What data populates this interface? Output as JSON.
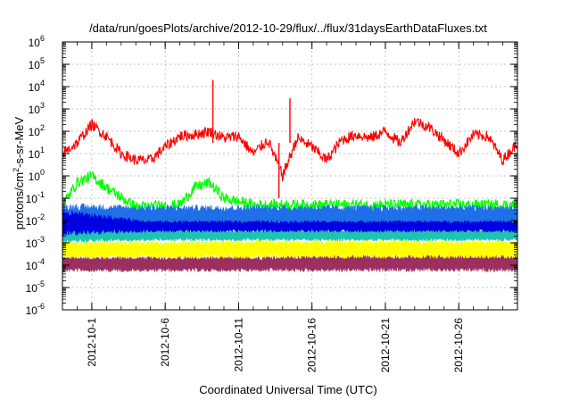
{
  "chart_data": {
    "type": "line",
    "title": "/data/run/goesPlots/archive/2012-10-29/flux/../flux/31daysEarthDataFluxes.txt",
    "xlabel": "Coordinated Universal Time (UTC)",
    "ylabel_main": "protons/cm",
    "ylabel_sup": "2",
    "ylabel_rest": "-s-sr-MeV",
    "yscale": "log",
    "ylim": [
      1e-06,
      1000000.0
    ],
    "y_ticks": [
      {
        "value": 1e-06,
        "base": "10",
        "exp": "-6"
      },
      {
        "value": 1e-05,
        "base": "10",
        "exp": "-5"
      },
      {
        "value": 0.0001,
        "base": "10",
        "exp": "-4"
      },
      {
        "value": 0.001,
        "base": "10",
        "exp": "-3"
      },
      {
        "value": 0.01,
        "base": "10",
        "exp": "-2"
      },
      {
        "value": 0.1,
        "base": "10",
        "exp": "-1"
      },
      {
        "value": 1,
        "base": "10",
        "exp": "0"
      },
      {
        "value": 10,
        "base": "10",
        "exp": "1"
      },
      {
        "value": 100,
        "base": "10",
        "exp": "2"
      },
      {
        "value": 1000,
        "base": "10",
        "exp": "3"
      },
      {
        "value": 10000,
        "base": "10",
        "exp": "4"
      },
      {
        "value": 100000,
        "base": "10",
        "exp": "5"
      },
      {
        "value": 1000000,
        "base": "10",
        "exp": "6"
      }
    ],
    "xlim": [
      "2012-09-29",
      "2012-10-30"
    ],
    "x_ticks": [
      "2012-10-1",
      "2012-10-6",
      "2012-10-11",
      "2012-10-16",
      "2012-10-21",
      "2012-10-26"
    ],
    "x_tick_dates": [
      "2012-10-01",
      "2012-10-06",
      "2012-10-11",
      "2012-10-16",
      "2012-10-21",
      "2012-10-26"
    ],
    "grid": true,
    "legend": "none",
    "series": [
      {
        "color": "#9b3060",
        "x": [
          "2012-09-29",
          "2012-10-05",
          "2012-10-11",
          "2012-10-17",
          "2012-10-23",
          "2012-10-30"
        ],
        "y_low": [
          5e-05,
          5e-05,
          5e-05,
          5e-05,
          5e-05,
          5e-05
        ],
        "y_high": [
          0.00025,
          0.00025,
          0.00025,
          0.0003,
          0.0003,
          0.0003
        ]
      },
      {
        "color": "#ffff00",
        "x": [
          "2012-09-29",
          "2012-10-05",
          "2012-10-11",
          "2012-10-17",
          "2012-10-23",
          "2012-10-30"
        ],
        "y_low": [
          0.0002,
          0.0002,
          0.0002,
          0.0002,
          0.0002,
          0.0002
        ],
        "y_high": [
          0.0012,
          0.0012,
          0.0013,
          0.0013,
          0.0014,
          0.0013
        ]
      },
      {
        "color": "#1fc4b0",
        "x": [
          "2012-09-29",
          "2012-10-05",
          "2012-10-11",
          "2012-10-17",
          "2012-10-23",
          "2012-10-30"
        ],
        "y_low": [
          0.001,
          0.0012,
          0.0012,
          0.0012,
          0.0012,
          0.0012
        ],
        "y_high": [
          0.006,
          0.004,
          0.004,
          0.004,
          0.004,
          0.004
        ]
      },
      {
        "color": "#00ff00",
        "x": [
          "2012-09-29",
          "2012-09-30",
          "2012-10-01",
          "2012-10-02",
          "2012-10-04",
          "2012-10-07",
          "2012-10-08",
          "2012-10-09",
          "2012-10-10",
          "2012-10-12",
          "2012-10-16",
          "2012-10-20",
          "2012-10-24",
          "2012-10-28",
          "2012-10-30"
        ],
        "y": [
          0.05,
          0.5,
          1.0,
          0.3,
          0.04,
          0.05,
          0.3,
          0.5,
          0.1,
          0.05,
          0.05,
          0.05,
          0.05,
          0.05,
          0.05
        ]
      },
      {
        "color": "#1e6fe8",
        "x": [
          "2012-09-29",
          "2012-10-05",
          "2012-10-11",
          "2012-10-17",
          "2012-10-23",
          "2012-10-30"
        ],
        "y_low": [
          0.003,
          0.004,
          0.004,
          0.004,
          0.004,
          0.004
        ],
        "y_high": [
          0.06,
          0.05,
          0.05,
          0.05,
          0.05,
          0.05
        ]
      },
      {
        "color": "#0000e0",
        "x": [
          "2012-09-29",
          "2012-10-05",
          "2012-10-11",
          "2012-10-17",
          "2012-10-23",
          "2012-10-30"
        ],
        "y_low": [
          0.002,
          0.003,
          0.003,
          0.003,
          0.003,
          0.003
        ],
        "y_high": [
          0.03,
          0.01,
          0.01,
          0.01,
          0.01,
          0.01
        ]
      },
      {
        "color": "#ff0000",
        "x": [
          "2012-09-29",
          "2012-09-30",
          "2012-10-01",
          "2012-10-02",
          "2012-10-03",
          "2012-10-04",
          "2012-10-05",
          "2012-10-06",
          "2012-10-07",
          "2012-10-08",
          "2012-10-09",
          "2012-10-10",
          "2012-10-11",
          "2012-10-12",
          "2012-10-13",
          "2012-10-14",
          "2012-10-15",
          "2012-10-16",
          "2012-10-17",
          "2012-10-18",
          "2012-10-19",
          "2012-10-20",
          "2012-10-21",
          "2012-10-22",
          "2012-10-23",
          "2012-10-24",
          "2012-10-25",
          "2012-10-26",
          "2012-10-27",
          "2012-10-28",
          "2012-10-29",
          "2012-10-30"
        ],
        "y": [
          10,
          30,
          200,
          60,
          10,
          5,
          5,
          20,
          60,
          70,
          100,
          50,
          60,
          10,
          40,
          1,
          50,
          20,
          5,
          40,
          70,
          50,
          100,
          30,
          300,
          150,
          40,
          10,
          70,
          60,
          5,
          30
        ]
      }
    ],
    "spikes": [
      {
        "x": "2012-10-09T06:00",
        "y": 20000,
        "color": "#ff0000"
      },
      {
        "x": "2012-10-14T12:00",
        "y": 3000,
        "color": "#ff0000"
      },
      {
        "x": "2012-10-13T18:00",
        "y": 0.1,
        "color": "#ff0000"
      }
    ]
  }
}
